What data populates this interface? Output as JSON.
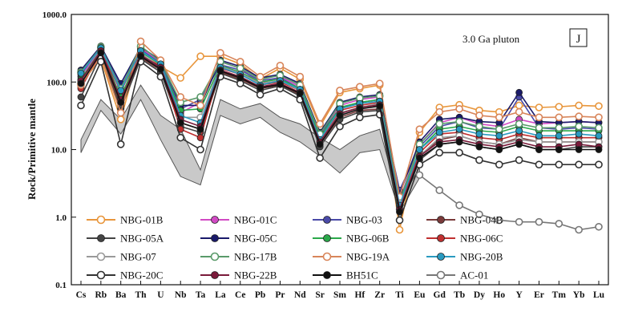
{
  "chart_data": {
    "type": "line",
    "title": "",
    "xlabel": "",
    "ylabel": "Rock/Primitive mantle",
    "y_scale": "log",
    "ylim": [
      0.1,
      1000
    ],
    "y_ticks": [
      "0.1",
      "1.0",
      "10.0",
      "100.0",
      "1000.0"
    ],
    "y_tick_values": [
      0.1,
      1,
      10,
      100,
      1000
    ],
    "categories": [
      "Cs",
      "Rb",
      "Ba",
      "Th",
      "U",
      "Nb",
      "Ta",
      "La",
      "Ce",
      "Pb",
      "Pr",
      "Nd",
      "Sr",
      "Sm",
      "Hf",
      "Zr",
      "Ti",
      "Eu",
      "Gd",
      "Tb",
      "Dy",
      "Ho",
      "Y",
      "Er",
      "Tm",
      "Yb",
      "Lu"
    ],
    "annotation": "3.0 Ga pluton",
    "panel_label": "J",
    "legend_position": "bottom-left",
    "reference_band": {
      "name": "shaded field",
      "color": "#c9c9c9",
      "upper": [
        14,
        55,
        28,
        90,
        32,
        20,
        5,
        55,
        40,
        48,
        30,
        24,
        15,
        10,
        16,
        20,
        1.6,
        5.5,
        null,
        null,
        null,
        null,
        null,
        null,
        null,
        null,
        null
      ],
      "lower": [
        9,
        38,
        17,
        55,
        14,
        4,
        3,
        32,
        24,
        30,
        18,
        13,
        8,
        4.5,
        9,
        10,
        1.2,
        3.8,
        null,
        null,
        null,
        null,
        null,
        null,
        null,
        null,
        null
      ]
    },
    "series": [
      {
        "name": "NBG-01B",
        "color": "#e8963c",
        "marker": "circle-open",
        "values": [
          95,
          220,
          28,
          330,
          170,
          115,
          240,
          240,
          185,
          110,
          160,
          110,
          22,
          70,
          80,
          90,
          0.65,
          18,
          42,
          46,
          38,
          36,
          45,
          42,
          43,
          45,
          44
        ]
      },
      {
        "name": "NBG-01C",
        "color": "#d14ac4",
        "marker": "circle",
        "values": [
          120,
          320,
          70,
          310,
          200,
          35,
          50,
          200,
          160,
          95,
          120,
          85,
          16,
          45,
          55,
          60,
          1.8,
          12,
          25,
          30,
          24,
          22,
          28,
          24,
          25,
          26,
          25
        ]
      },
      {
        "name": "NBG-03",
        "color": "#4a4aa8",
        "marker": "circle",
        "values": [
          130,
          330,
          85,
          300,
          190,
          40,
          55,
          180,
          150,
          105,
          115,
          80,
          17,
          40,
          50,
          55,
          2.5,
          11,
          22,
          26,
          21,
          20,
          60,
          21,
          20,
          21,
          20
        ]
      },
      {
        "name": "NBG-04B",
        "color": "#7a3a3a",
        "marker": "circle",
        "values": [
          85,
          260,
          45,
          230,
          150,
          25,
          20,
          140,
          110,
          80,
          90,
          65,
          12,
          30,
          38,
          40,
          1.5,
          8,
          14,
          16,
          13,
          12,
          15,
          13,
          13,
          13,
          13
        ]
      },
      {
        "name": "NBG-05A",
        "color": "#444444",
        "marker": "circle",
        "values": [
          60,
          250,
          40,
          220,
          140,
          22,
          18,
          135,
          105,
          75,
          88,
          62,
          11,
          28,
          36,
          38,
          1.2,
          7,
          12,
          13,
          11,
          10,
          12,
          10,
          10,
          11,
          11
        ]
      },
      {
        "name": "NBG-05C",
        "color": "#1a1a6a",
        "marker": "circle",
        "values": [
          150,
          340,
          95,
          330,
          210,
          45,
          45,
          210,
          170,
          115,
          130,
          95,
          18,
          50,
          60,
          65,
          2.2,
          13,
          28,
          30,
          26,
          25,
          70,
          26,
          25,
          26,
          25
        ]
      },
      {
        "name": "NBG-06B",
        "color": "#2aa84a",
        "marker": "circle",
        "values": [
          110,
          300,
          60,
          280,
          180,
          38,
          40,
          175,
          140,
          100,
          110,
          80,
          15,
          42,
          50,
          55,
          1.6,
          10,
          20,
          22,
          19,
          18,
          22,
          19,
          19,
          19,
          19
        ]
      },
      {
        "name": "NBG-06C",
        "color": "#c03030",
        "marker": "circle",
        "values": [
          80,
          280,
          75,
          260,
          170,
          20,
          15,
          160,
          130,
          90,
          100,
          75,
          14,
          38,
          45,
          50,
          1.4,
          9,
          17,
          18,
          15,
          14,
          17,
          15,
          15,
          15,
          15
        ]
      },
      {
        "name": "NBG-07",
        "color": "#999999",
        "marker": "circle-open",
        "values": [
          100,
          300,
          50,
          270,
          160,
          30,
          30,
          170,
          135,
          95,
          105,
          75,
          13,
          35,
          42,
          48,
          1.3,
          8,
          15,
          16,
          13,
          12,
          14,
          13,
          13,
          13,
          13
        ]
      },
      {
        "name": "NBG-17B",
        "color": "#5a9a6a",
        "marker": "circle-open",
        "values": [
          140,
          330,
          80,
          340,
          200,
          50,
          60,
          200,
          160,
          110,
          125,
          90,
          17,
          48,
          58,
          62,
          1.7,
          12,
          24,
          26,
          22,
          20,
          24,
          21,
          21,
          22,
          21
        ]
      },
      {
        "name": "NBG-19A",
        "color": "#d8855a",
        "marker": "circle-open",
        "values": [
          90,
          240,
          35,
          400,
          210,
          60,
          45,
          270,
          200,
          120,
          175,
          120,
          24,
          75,
          85,
          95,
          2.0,
          20,
          36,
          40,
          32,
          30,
          36,
          30,
          30,
          31,
          30
        ]
      },
      {
        "name": "NBG-20B",
        "color": "#2a9ac0",
        "marker": "circle",
        "values": [
          135,
          320,
          75,
          290,
          185,
          32,
          25,
          165,
          130,
          90,
          105,
          78,
          14,
          40,
          48,
          52,
          1.5,
          10,
          18,
          20,
          17,
          16,
          19,
          16,
          16,
          17,
          16
        ]
      },
      {
        "name": "NBG-20C",
        "color": "#333333",
        "marker": "circle-open",
        "values": [
          45,
          200,
          12,
          200,
          120,
          15,
          10,
          120,
          95,
          65,
          80,
          55,
          7.5,
          22,
          30,
          33,
          0.9,
          6,
          9,
          9,
          7,
          6,
          7,
          6,
          6,
          6,
          6
        ]
      },
      {
        "name": "NBG-22B",
        "color": "#7a1a3a",
        "marker": "circle",
        "values": [
          105,
          290,
          55,
          250,
          165,
          28,
          22,
          150,
          120,
          85,
          95,
          70,
          13,
          34,
          42,
          46,
          1.3,
          8,
          13,
          14,
          12,
          11,
          13,
          11,
          11,
          12,
          11
        ]
      },
      {
        "name": "BH51C",
        "color": "#111111",
        "marker": "circle",
        "values": [
          95,
          270,
          50,
          240,
          155,
          25,
          20,
          145,
          115,
          82,
          92,
          68,
          12,
          32,
          40,
          44,
          1.2,
          7.5,
          12,
          13,
          11,
          10,
          12,
          10,
          10,
          10,
          10
        ]
      },
      {
        "name": "AC-01",
        "color": "#777777",
        "marker": "circle-open",
        "values": [
          null,
          null,
          null,
          null,
          null,
          null,
          null,
          null,
          null,
          null,
          null,
          null,
          null,
          null,
          null,
          null,
          null,
          4.2,
          2.5,
          1.5,
          1.1,
          0.9,
          0.85,
          0.85,
          0.8,
          0.65,
          0.72
        ]
      }
    ]
  }
}
